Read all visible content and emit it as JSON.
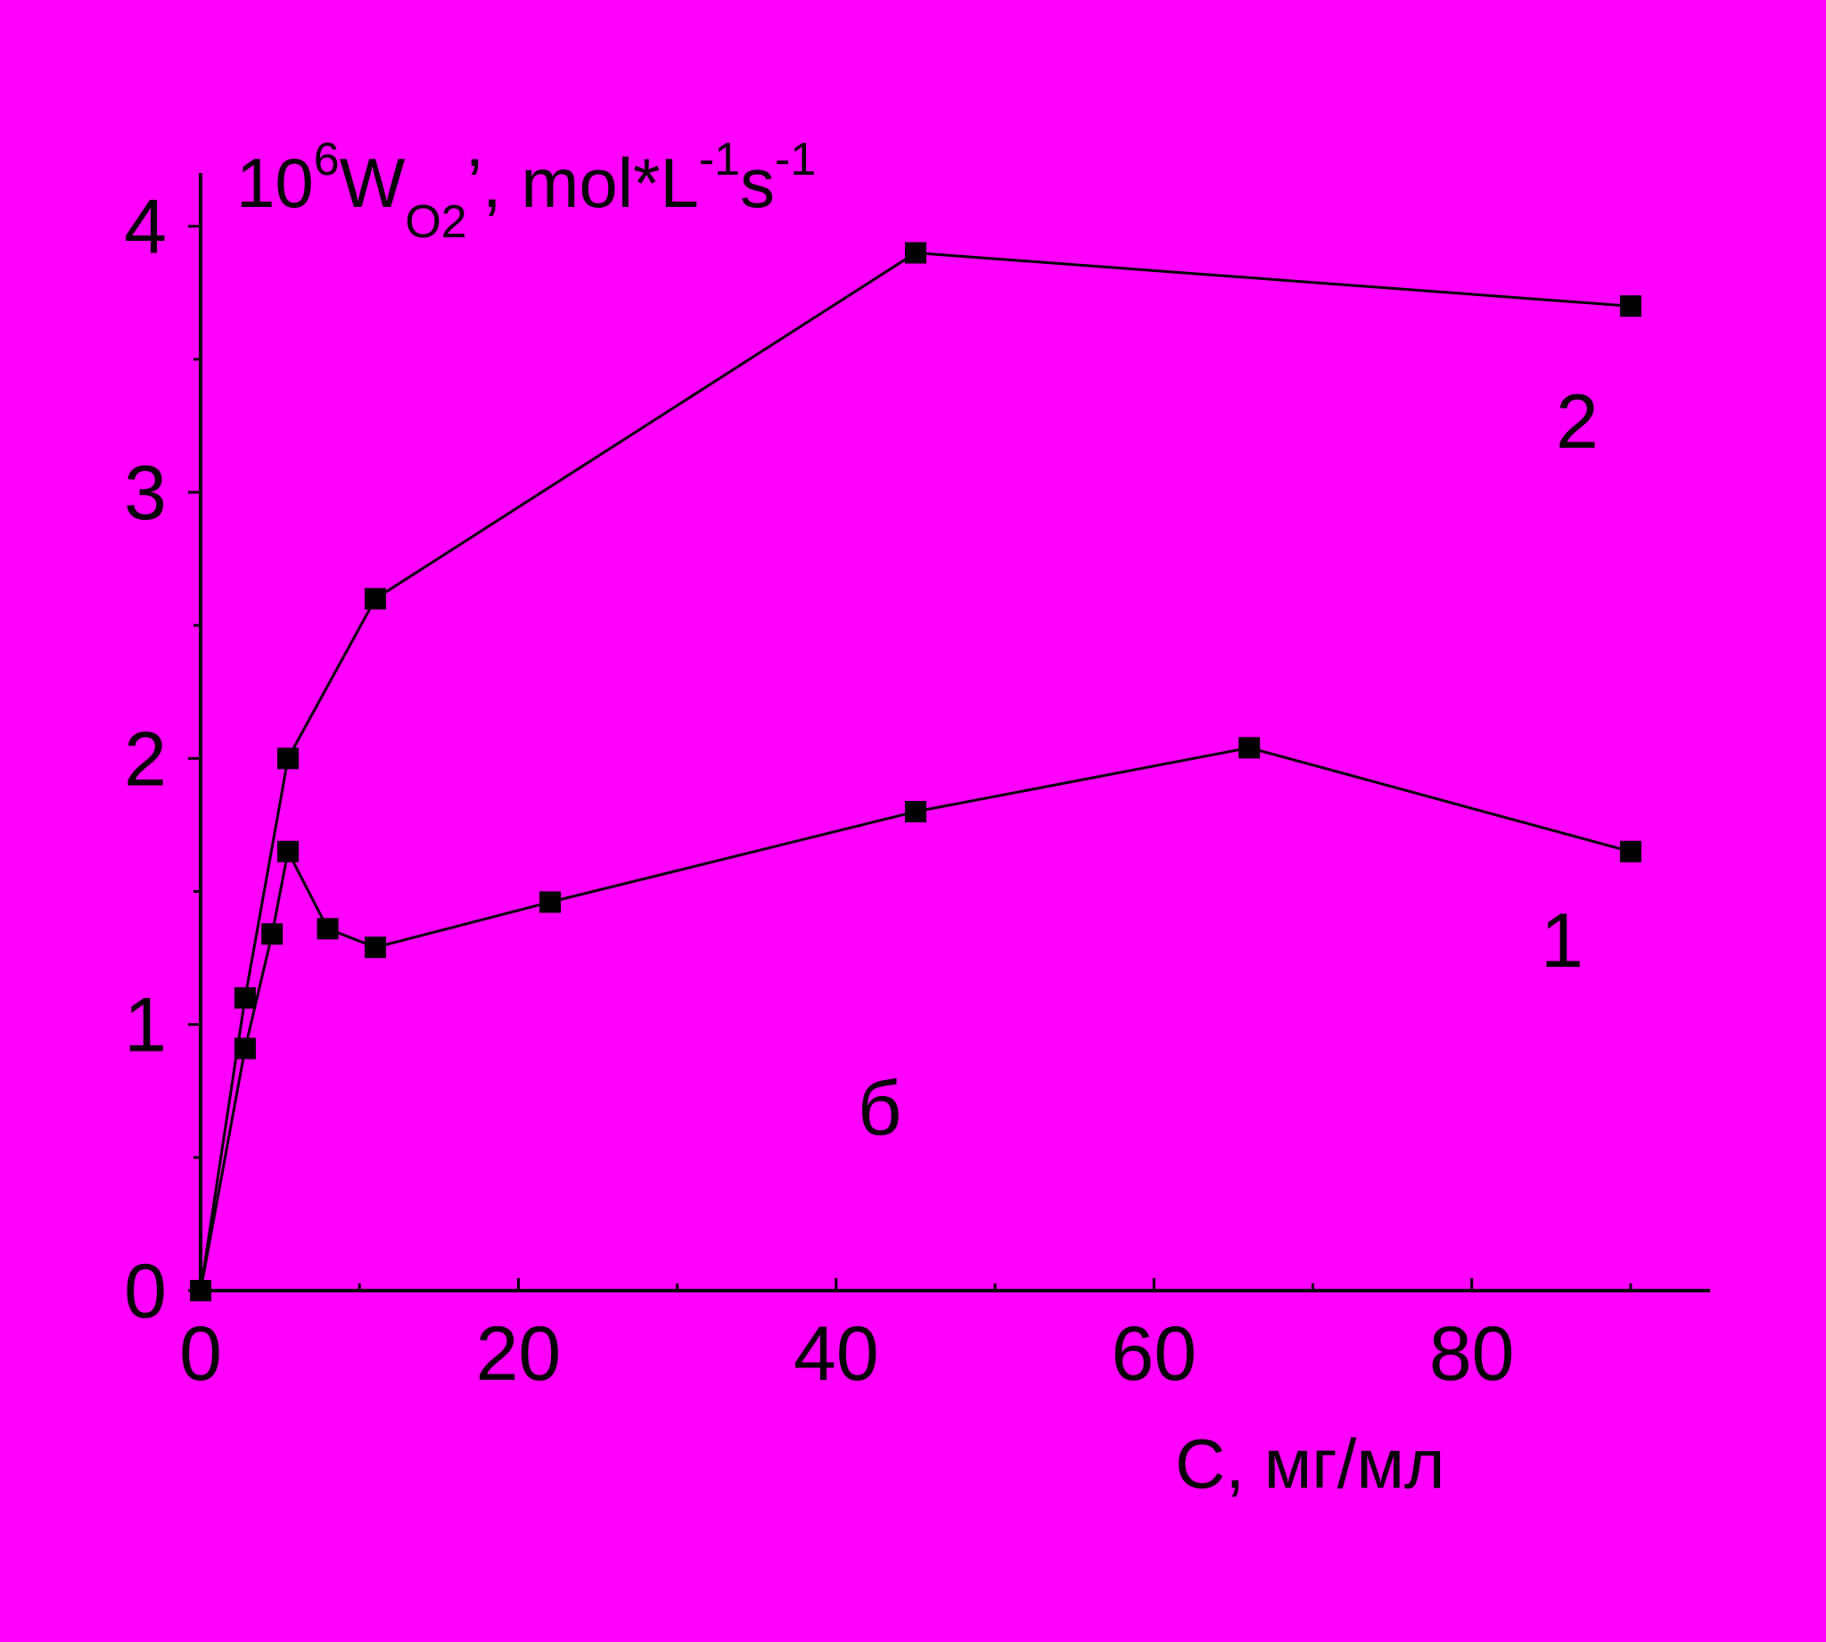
{
  "chart_data": {
    "type": "line",
    "xlabel": "C, мг/мл",
    "ylabel": {
      "prefix": "10",
      "prefix_sup": "6",
      "main": "W",
      "sub": "O2",
      "rest": "’, mol*L",
      "sup1": "-1",
      "s": "s",
      "sup2": "-1"
    },
    "xlim": [
      0,
      95
    ],
    "ylim": [
      0,
      4.2
    ],
    "x_ticks": [
      0,
      20,
      40,
      60,
      80
    ],
    "y_ticks": [
      0,
      1,
      2,
      3,
      4
    ],
    "grid": false,
    "panel_label": "б",
    "colors": {
      "background": "#ff00ff",
      "ink": "#000000"
    },
    "series": [
      {
        "name": "1",
        "x": [
          0,
          2.8,
          4.5,
          5.5,
          8,
          11,
          22,
          45,
          66,
          90
        ],
        "y": [
          0,
          0.91,
          1.34,
          1.65,
          1.36,
          1.29,
          1.46,
          1.8,
          2.04,
          1.65
        ]
      },
      {
        "name": "2",
        "x": [
          0,
          2.8,
          5.5,
          11,
          45,
          90
        ],
        "y": [
          0,
          1.1,
          2.0,
          2.6,
          3.9,
          3.7
        ]
      }
    ]
  }
}
